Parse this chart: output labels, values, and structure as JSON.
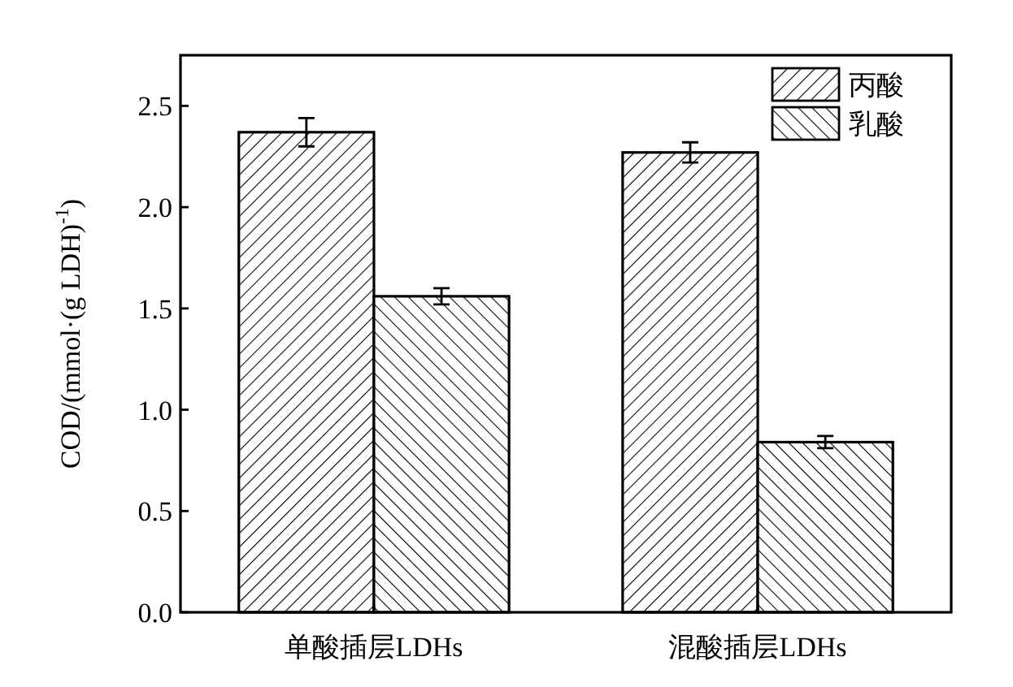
{
  "chart_data": {
    "type": "bar",
    "ylabel": "COD/(mmol·(g LDH)$^{-1}$)",
    "categories": [
      "单酸插层LDHs",
      "混酸插层LDHs"
    ],
    "series": [
      {
        "name": "丙酸",
        "color": "#000000",
        "values": [
          2.37,
          2.27
        ],
        "errors": [
          0.07,
          0.05
        ]
      },
      {
        "name": "乳酸",
        "color": "#000000",
        "values": [
          1.56,
          0.84
        ],
        "errors": [
          0.04,
          0.03
        ]
      }
    ],
    "ylim": [
      0,
      2.75
    ],
    "yticks": [
      {
        "value": 0,
        "label": "0.0"
      },
      {
        "value": 0.5,
        "label": "0.5"
      },
      {
        "value": 1,
        "label": "1.0"
      },
      {
        "value": 1.5,
        "label": "1.5"
      },
      {
        "value": 2,
        "label": "2.0"
      },
      {
        "value": 2.5,
        "label": "2.5"
      }
    ],
    "legend": "top right",
    "grid": false
  }
}
